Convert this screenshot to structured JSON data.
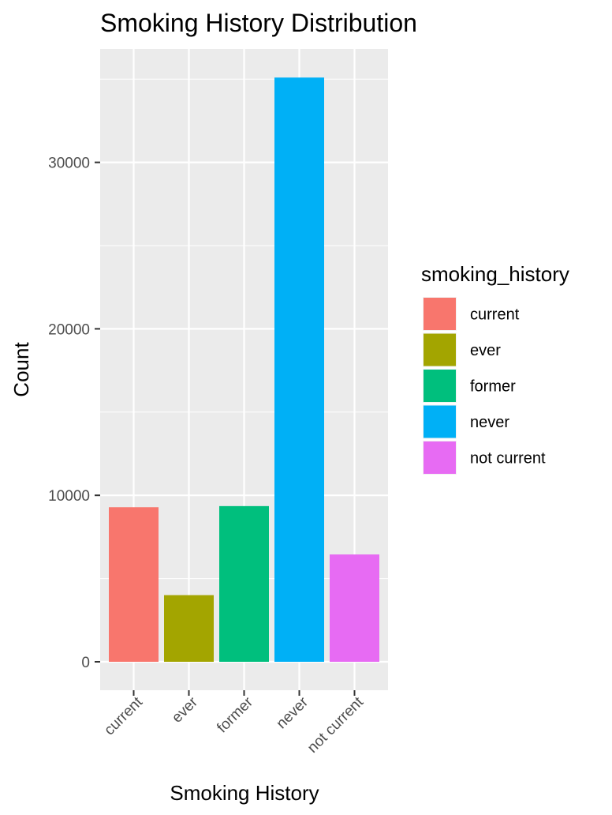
{
  "chart_data": {
    "type": "bar",
    "title": "Smoking History Distribution",
    "xlabel": "Smoking History",
    "ylabel": "Count",
    "categories": [
      "current",
      "ever",
      "former",
      "never",
      "not current"
    ],
    "values": [
      9286,
      4004,
      9352,
      35095,
      6447
    ],
    "colors": [
      "#F8766D",
      "#A3A500",
      "#00BF7D",
      "#00B0F6",
      "#E76BF3"
    ],
    "ylim": [
      0,
      36850
    ],
    "yticks": [
      0,
      10000,
      20000,
      30000
    ],
    "ytick_labels": [
      "0",
      "10000",
      "20000",
      "30000"
    ],
    "grid": true,
    "legend": {
      "title": "smoking_history",
      "position": "right",
      "entries": [
        "current",
        "ever",
        "former",
        "never",
        "not current"
      ]
    }
  }
}
